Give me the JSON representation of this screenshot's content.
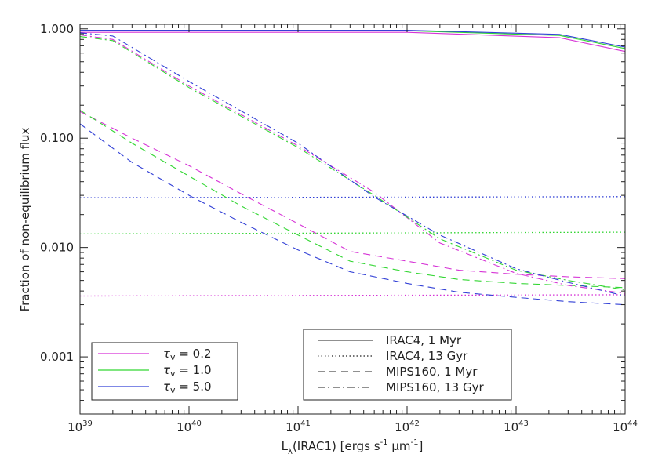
{
  "chart_data": {
    "type": "line",
    "xlabel": "L_λ(IRAC1) [ergs s⁻¹ µm⁻¹]",
    "xlabel_parts": {
      "L": "L",
      "sub": "λ",
      "mid": "(IRAC1) [ergs s",
      "sup1": "-1",
      "mu": " μm",
      "sup2": "-1",
      "end": "]"
    },
    "ylabel": "Fraction of non-equilibrium flux",
    "xscale": "log",
    "yscale": "log",
    "xlim": [
      1e+39,
      1e+44
    ],
    "ylim": [
      0.0003,
      1.1
    ],
    "x_ticks": [
      {
        "value": 1e+39,
        "base": "10",
        "exp": "39"
      },
      {
        "value": 1e+40,
        "base": "10",
        "exp": "40"
      },
      {
        "value": 1e+41,
        "base": "10",
        "exp": "41"
      },
      {
        "value": 1e+42,
        "base": "10",
        "exp": "42"
      },
      {
        "value": 1e+43,
        "base": "10",
        "exp": "43"
      },
      {
        "value": 1e+44,
        "base": "10",
        "exp": "44"
      }
    ],
    "y_ticks": [
      {
        "value": 1.0,
        "label": "1.000"
      },
      {
        "value": 0.1,
        "label": "0.100"
      },
      {
        "value": 0.01,
        "label": "0.010"
      },
      {
        "value": 0.001,
        "label": "0.001"
      }
    ],
    "colors": {
      "magenta": "#d633d6",
      "green": "#33d633",
      "blue": "#3341d6"
    },
    "legend_tau": {
      "position": "bottom-left",
      "entries": [
        {
          "symbol": "τ",
          "sub": "v",
          "value": " = 0.2",
          "color": "#d633d6"
        },
        {
          "symbol": "τ",
          "sub": "v",
          "value": " = 1.0",
          "color": "#33d633"
        },
        {
          "symbol": "τ",
          "sub": "v",
          "value": " = 5.0",
          "color": "#3341d6"
        }
      ]
    },
    "legend_style": {
      "position": "bottom-center",
      "entries": [
        {
          "label": "IRAC4, 1 Myr",
          "style": "solid"
        },
        {
          "label": "IRAC4, 13 Gyr",
          "style": "dotted"
        },
        {
          "label": "MIPS160, 1 Myr",
          "style": "dashed"
        },
        {
          "label": "MIPS160, 13 Gyr",
          "style": "dashdot"
        }
      ]
    },
    "series": [
      {
        "band": "IRAC4",
        "age": "1 Myr",
        "tau": 0.2,
        "style": "solid",
        "color": "#d633d6",
        "x": [
          1e+39,
          3e+39,
          1e+40,
          1e+41,
          1e+42,
          2.5e+43,
          1e+44
        ],
        "y": [
          0.93,
          0.93,
          0.93,
          0.93,
          0.93,
          0.83,
          0.62
        ]
      },
      {
        "band": "IRAC4",
        "age": "1 Myr",
        "tau": 1.0,
        "style": "solid",
        "color": "#33d633",
        "x": [
          1e+39,
          3e+39,
          1e+40,
          1e+41,
          1e+42,
          2.5e+43,
          1e+44
        ],
        "y": [
          0.96,
          0.96,
          0.96,
          0.96,
          0.96,
          0.87,
          0.66
        ]
      },
      {
        "band": "IRAC4",
        "age": "1 Myr",
        "tau": 5.0,
        "style": "solid",
        "color": "#3341d6",
        "x": [
          1e+39,
          3e+39,
          1e+40,
          1e+41,
          1e+42,
          2.5e+43,
          1e+44
        ],
        "y": [
          0.97,
          0.97,
          0.97,
          0.97,
          0.97,
          0.89,
          0.68
        ]
      },
      {
        "band": "IRAC4",
        "age": "13 Gyr",
        "tau": 0.2,
        "style": "dotted",
        "color": "#d633d6",
        "x": [
          1e+39,
          1e+44
        ],
        "y": [
          0.0036,
          0.0037
        ]
      },
      {
        "band": "IRAC4",
        "age": "13 Gyr",
        "tau": 1.0,
        "style": "dotted",
        "color": "#33d633",
        "x": [
          1e+39,
          1e+44
        ],
        "y": [
          0.0133,
          0.0138
        ]
      },
      {
        "band": "IRAC4",
        "age": "13 Gyr",
        "tau": 5.0,
        "style": "dotted",
        "color": "#3341d6",
        "x": [
          1e+39,
          1e+44
        ],
        "y": [
          0.0285,
          0.0292
        ]
      },
      {
        "band": "MIPS160",
        "age": "1 Myr",
        "tau": 0.2,
        "style": "dashed",
        "color": "#d633d6",
        "x": [
          1e+39,
          3e+39,
          1e+40,
          3e+40,
          1e+41,
          3e+41,
          1e+42,
          3e+42,
          1e+43,
          3e+43,
          1e+44
        ],
        "y": [
          0.175,
          0.1,
          0.056,
          0.031,
          0.0165,
          0.0092,
          0.0075,
          0.0062,
          0.0057,
          0.0054,
          0.0052
        ]
      },
      {
        "band": "MIPS160",
        "age": "1 Myr",
        "tau": 1.0,
        "style": "dashed",
        "color": "#33d633",
        "x": [
          1e+39,
          3e+39,
          1e+40,
          3e+40,
          1e+41,
          3e+41,
          1e+42,
          3e+42,
          1e+43,
          3e+43,
          1e+44
        ],
        "y": [
          0.18,
          0.09,
          0.045,
          0.024,
          0.013,
          0.0075,
          0.006,
          0.0051,
          0.0047,
          0.0045,
          0.0043
        ]
      },
      {
        "band": "MIPS160",
        "age": "1 Myr",
        "tau": 5.0,
        "style": "dashed",
        "color": "#3341d6",
        "x": [
          1e+39,
          3e+39,
          1e+40,
          3e+40,
          1e+41,
          3e+41,
          1e+42,
          3e+42,
          1e+43,
          3e+43,
          1e+44
        ],
        "y": [
          0.135,
          0.06,
          0.03,
          0.017,
          0.0095,
          0.006,
          0.0047,
          0.0039,
          0.0035,
          0.0032,
          0.003
        ]
      },
      {
        "band": "MIPS160",
        "age": "13 Gyr",
        "tau": 0.2,
        "style": "dashdot",
        "color": "#d633d6",
        "x": [
          1e+39,
          2e+39,
          1e+40,
          1e+41,
          5e+41,
          2e+42,
          1e+43,
          3e+43,
          1e+44
        ],
        "y": [
          0.88,
          0.8,
          0.3,
          0.085,
          0.032,
          0.011,
          0.0058,
          0.0045,
          0.0038
        ]
      },
      {
        "band": "MIPS160",
        "age": "13 Gyr",
        "tau": 1.0,
        "style": "dashdot",
        "color": "#33d633",
        "x": [
          1e+39,
          2e+39,
          1e+40,
          1e+41,
          5e+41,
          2e+42,
          1e+43,
          3e+43,
          1e+44
        ],
        "y": [
          0.85,
          0.78,
          0.29,
          0.082,
          0.03,
          0.012,
          0.0062,
          0.005,
          0.0041
        ]
      },
      {
        "band": "MIPS160",
        "age": "13 Gyr",
        "tau": 5.0,
        "style": "dashdot",
        "color": "#3341d6",
        "x": [
          1e+39,
          2e+39,
          1e+40,
          1e+41,
          5e+41,
          2e+42,
          1e+43,
          3e+43,
          1e+44
        ],
        "y": [
          0.92,
          0.86,
          0.33,
          0.09,
          0.029,
          0.013,
          0.0064,
          0.0048,
          0.0036
        ]
      }
    ]
  }
}
